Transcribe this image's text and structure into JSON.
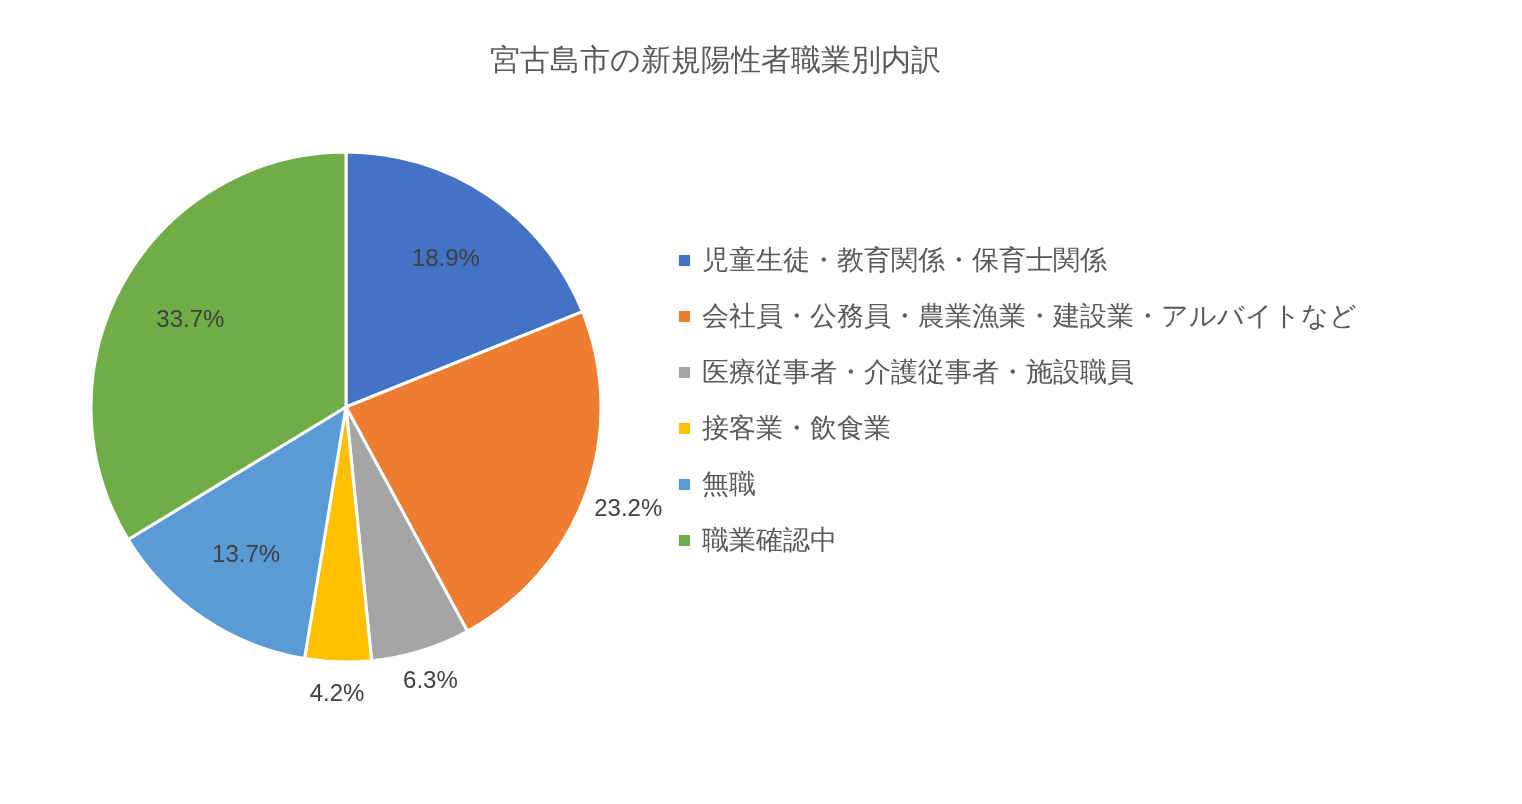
{
  "chart_data": {
    "type": "pie",
    "title": "宮古島市の新規陽性者職業別内訳",
    "categories": [
      "児童生徒・教育関係・保育士関係",
      "会社員・公務員・農業漁業・建設業・アルバイトなど",
      "医療従事者・介護従事者・施設職員",
      "接客業・飲食業",
      "無職",
      "職業確認中"
    ],
    "values": [
      18.9,
      23.2,
      6.3,
      4.2,
      13.7,
      33.7
    ],
    "colors": [
      "#4472c4",
      "#ed7d31",
      "#a5a5a5",
      "#ffc000",
      "#5b9bd5",
      "#70ad47"
    ],
    "value_labels": [
      "18.9%",
      "23.2%",
      "6.3%",
      "4.2%",
      "13.7%",
      "33.7%"
    ],
    "legend": "right"
  }
}
